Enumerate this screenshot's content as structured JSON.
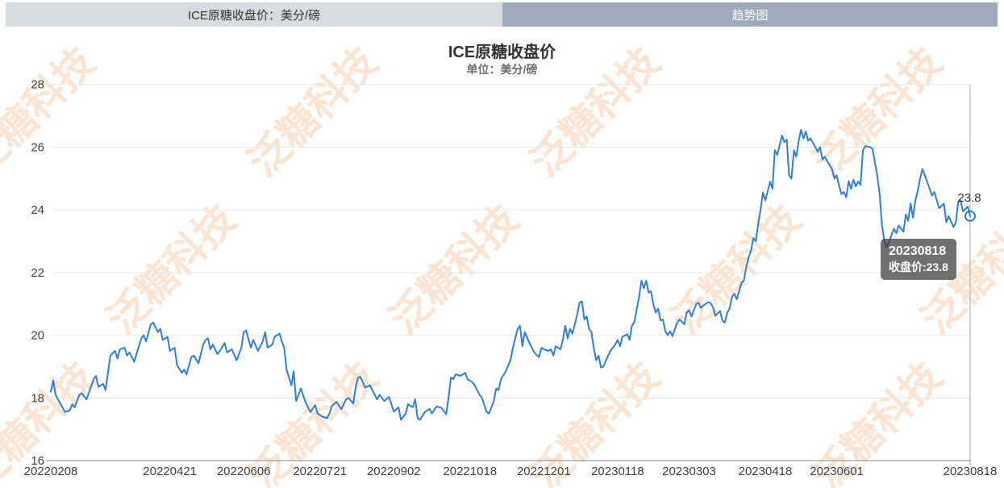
{
  "tabs": {
    "left": {
      "label": "ICE原糖收盘价：美分/磅"
    },
    "right": {
      "label": "趋势图"
    }
  },
  "header": {
    "title": "ICE原糖收盘价",
    "subtitle": "单位：美分/磅"
  },
  "watermark": {
    "text": "泛糖科技"
  },
  "tooltip": {
    "date": "20230818",
    "value_line": "收盘价:23.8"
  },
  "point_label": "23.8",
  "colors": {
    "line": "#2f7ed8",
    "grid": "#e8e8e8",
    "axis": "#888888",
    "tick_text": "#404040",
    "crosshair": "#a8a8a8",
    "tab_left_bg": "#d6dce3",
    "tab_left_text": "#333333",
    "tab_right_bg": "#9dabbb",
    "tab_right_text": "#ffffff",
    "watermark": "rgba(245,158,95,0.28)",
    "tooltip_bg": "rgba(64,64,64,0.75)"
  },
  "chart_data": {
    "type": "line",
    "title": "ICE原糖收盘价",
    "subtitle": "单位：美分/磅",
    "xlabel": "",
    "ylabel": "",
    "ylim": [
      16,
      28
    ],
    "yticks": [
      16,
      18,
      20,
      22,
      24,
      26,
      28
    ],
    "grid": "horizontal-only",
    "legend": "none",
    "x_axis_type": "trading-day-index",
    "total_days": 386,
    "xticks": [
      {
        "day": 0,
        "label": "20220208"
      },
      {
        "day": 50,
        "label": "20220421"
      },
      {
        "day": 81,
        "label": "20220606"
      },
      {
        "day": 113,
        "label": "20220721"
      },
      {
        "day": 144,
        "label": "20220902"
      },
      {
        "day": 176,
        "label": "20221018"
      },
      {
        "day": 207,
        "label": "20221201"
      },
      {
        "day": 238,
        "label": "20230118"
      },
      {
        "day": 268,
        "label": "20230303"
      },
      {
        "day": 300,
        "label": "20230418"
      },
      {
        "day": 330,
        "label": "20230601"
      },
      {
        "day": 386,
        "label": "20230818"
      }
    ],
    "last_point": {
      "date": "20230818",
      "value": 23.8
    },
    "series": [
      {
        "name": "收盘价",
        "unit": "美分/磅",
        "color": "#2f7ed8",
        "points": [
          [
            0,
            18.2
          ],
          [
            1,
            18.55
          ],
          [
            2,
            18.1
          ],
          [
            3,
            17.95
          ],
          [
            6,
            17.55
          ],
          [
            8,
            17.6
          ],
          [
            9,
            17.8
          ],
          [
            10,
            17.7
          ],
          [
            12,
            18.1
          ],
          [
            13,
            18.15
          ],
          [
            15,
            17.95
          ],
          [
            18,
            18.6
          ],
          [
            19,
            18.7
          ],
          [
            20,
            18.35
          ],
          [
            22,
            18.45
          ],
          [
            23,
            18.25
          ],
          [
            25,
            19.35
          ],
          [
            27,
            19.5
          ],
          [
            28,
            19.25
          ],
          [
            29,
            19.55
          ],
          [
            31,
            19.6
          ],
          [
            32,
            19.35
          ],
          [
            33,
            19.45
          ],
          [
            35,
            19.15
          ],
          [
            38,
            19.9
          ],
          [
            39,
            20.0
          ],
          [
            40,
            19.8
          ],
          [
            42,
            20.35
          ],
          [
            43,
            20.4
          ],
          [
            45,
            20.1
          ],
          [
            46,
            20.2
          ],
          [
            47,
            19.85
          ],
          [
            49,
            19.95
          ],
          [
            50,
            19.5
          ],
          [
            52,
            19.6
          ],
          [
            53,
            19.05
          ],
          [
            55,
            18.8
          ],
          [
            56,
            18.9
          ],
          [
            57,
            18.75
          ],
          [
            59,
            19.3
          ],
          [
            60,
            19.35
          ],
          [
            62,
            19.1
          ],
          [
            64,
            19.7
          ],
          [
            65,
            19.85
          ],
          [
            66,
            19.9
          ],
          [
            67,
            19.55
          ],
          [
            68,
            19.7
          ],
          [
            70,
            19.4
          ],
          [
            71,
            19.5
          ],
          [
            73,
            19.75
          ],
          [
            74,
            19.45
          ],
          [
            76,
            19.55
          ],
          [
            78,
            19.2
          ],
          [
            80,
            19.6
          ],
          [
            81,
            20.1
          ],
          [
            82,
            20.15
          ],
          [
            84,
            19.6
          ],
          [
            85,
            19.85
          ],
          [
            87,
            19.5
          ],
          [
            89,
            19.8
          ],
          [
            90,
            20.1
          ],
          [
            91,
            19.6
          ],
          [
            93,
            19.7
          ],
          [
            94,
            19.95
          ],
          [
            96,
            20.05
          ],
          [
            97,
            19.8
          ],
          [
            98,
            19.6
          ],
          [
            99,
            18.9
          ],
          [
            101,
            18.4
          ],
          [
            102,
            18.85
          ],
          [
            103,
            17.9
          ],
          [
            105,
            18.3
          ],
          [
            107,
            17.85
          ],
          [
            109,
            17.55
          ],
          [
            111,
            17.77
          ],
          [
            112,
            17.5
          ],
          [
            114,
            17.4
          ],
          [
            116,
            17.35
          ],
          [
            117,
            17.5
          ],
          [
            118,
            17.74
          ],
          [
            120,
            17.87
          ],
          [
            122,
            17.64
          ],
          [
            124,
            17.95
          ],
          [
            125,
            18.0
          ],
          [
            127,
            17.82
          ],
          [
            128,
            18.33
          ],
          [
            129,
            18.64
          ],
          [
            130,
            18.67
          ],
          [
            132,
            18.33
          ],
          [
            134,
            18.4
          ],
          [
            135,
            18.25
          ],
          [
            137,
            17.95
          ],
          [
            138,
            18.1
          ],
          [
            140,
            17.9
          ],
          [
            142,
            18.03
          ],
          [
            144,
            17.56
          ],
          [
            146,
            17.7
          ],
          [
            147,
            17.3
          ],
          [
            149,
            17.5
          ],
          [
            150,
            17.8
          ],
          [
            152,
            17.7
          ],
          [
            153,
            17.95
          ],
          [
            154,
            17.35
          ],
          [
            155,
            17.3
          ],
          [
            157,
            17.55
          ],
          [
            159,
            17.65
          ],
          [
            160,
            17.5
          ],
          [
            162,
            17.73
          ],
          [
            164,
            17.68
          ],
          [
            166,
            17.48
          ],
          [
            167,
            18.0
          ],
          [
            168,
            18.65
          ],
          [
            169,
            18.6
          ],
          [
            170,
            18.75
          ],
          [
            172,
            18.7
          ],
          [
            174,
            18.8
          ],
          [
            175,
            18.6
          ],
          [
            177,
            18.5
          ],
          [
            178,
            18.4
          ],
          [
            180,
            18.1
          ],
          [
            181,
            18.0
          ],
          [
            183,
            17.55
          ],
          [
            184,
            17.5
          ],
          [
            186,
            17.9
          ],
          [
            187,
            18.3
          ],
          [
            188,
            18.25
          ],
          [
            189,
            18.6
          ],
          [
            191,
            18.85
          ],
          [
            193,
            19.2
          ],
          [
            194,
            19.6
          ],
          [
            196,
            20.2
          ],
          [
            197,
            20.3
          ],
          [
            198,
            19.65
          ],
          [
            199,
            20.1
          ],
          [
            201,
            19.75
          ],
          [
            203,
            19.45
          ],
          [
            205,
            19.3
          ],
          [
            206,
            19.6
          ],
          [
            207,
            19.55
          ],
          [
            209,
            19.5
          ],
          [
            210,
            19.55
          ],
          [
            211,
            19.35
          ],
          [
            212,
            19.65
          ],
          [
            214,
            19.55
          ],
          [
            215,
            19.85
          ],
          [
            216,
            20.3
          ],
          [
            217,
            19.9
          ],
          [
            218,
            20.2
          ],
          [
            219,
            20.05
          ],
          [
            221,
            20.65
          ],
          [
            222,
            21.03
          ],
          [
            223,
            21.08
          ],
          [
            224,
            20.5
          ],
          [
            225,
            20.6
          ],
          [
            226,
            20.2
          ],
          [
            227,
            20.1
          ],
          [
            228,
            19.57
          ],
          [
            229,
            19.2
          ],
          [
            230,
            19.35
          ],
          [
            231,
            18.97
          ],
          [
            232,
            19.0
          ],
          [
            234,
            19.35
          ],
          [
            235,
            19.5
          ],
          [
            237,
            19.7
          ],
          [
            238,
            19.85
          ],
          [
            239,
            19.65
          ],
          [
            240,
            19.95
          ],
          [
            242,
            20.03
          ],
          [
            243,
            19.85
          ],
          [
            244,
            20.3
          ],
          [
            245,
            20.42
          ],
          [
            247,
            21.23
          ],
          [
            248,
            21.74
          ],
          [
            249,
            21.5
          ],
          [
            250,
            21.74
          ],
          [
            251,
            21.36
          ],
          [
            252,
            21.4
          ],
          [
            253,
            20.98
          ],
          [
            254,
            20.72
          ],
          [
            255,
            20.85
          ],
          [
            256,
            20.47
          ],
          [
            257,
            20.5
          ],
          [
            258,
            20.13
          ],
          [
            259,
            20.0
          ],
          [
            260,
            20.13
          ],
          [
            261,
            19.97
          ],
          [
            263,
            20.4
          ],
          [
            264,
            20.5
          ],
          [
            266,
            20.35
          ],
          [
            267,
            20.72
          ],
          [
            268,
            20.8
          ],
          [
            269,
            20.6
          ],
          [
            271,
            21.0
          ],
          [
            272,
            21.03
          ],
          [
            273,
            20.87
          ],
          [
            274,
            20.95
          ],
          [
            276,
            21.05
          ],
          [
            277,
            21.03
          ],
          [
            278,
            20.9
          ],
          [
            279,
            20.62
          ],
          [
            281,
            20.77
          ],
          [
            282,
            20.47
          ],
          [
            283,
            20.4
          ],
          [
            284,
            20.72
          ],
          [
            285,
            20.85
          ],
          [
            286,
            21.23
          ],
          [
            287,
            21.32
          ],
          [
            288,
            21.15
          ],
          [
            290,
            21.67
          ],
          [
            291,
            21.74
          ],
          [
            292,
            22.18
          ],
          [
            293,
            22.48
          ],
          [
            294,
            22.7
          ],
          [
            295,
            23.1
          ],
          [
            296,
            23.0
          ],
          [
            297,
            23.55
          ],
          [
            298,
            24.0
          ],
          [
            299,
            24.55
          ],
          [
            300,
            24.3
          ],
          [
            302,
            24.9
          ],
          [
            303,
            24.67
          ],
          [
            304,
            25.9
          ],
          [
            305,
            25.75
          ],
          [
            307,
            26.37
          ],
          [
            308,
            26.16
          ],
          [
            309,
            26.24
          ],
          [
            310,
            25.1
          ],
          [
            311,
            25.0
          ],
          [
            312,
            25.9
          ],
          [
            313,
            25.7
          ],
          [
            314,
            26.2
          ],
          [
            315,
            26.55
          ],
          [
            316,
            26.28
          ],
          [
            317,
            26.5
          ],
          [
            318,
            26.2
          ],
          [
            319,
            26.28
          ],
          [
            321,
            26.0
          ],
          [
            322,
            25.85
          ],
          [
            323,
            26.0
          ],
          [
            324,
            25.6
          ],
          [
            325,
            25.7
          ],
          [
            326,
            25.55
          ],
          [
            328,
            25.3
          ],
          [
            329,
            25.0
          ],
          [
            330,
            25.1
          ],
          [
            331,
            24.75
          ],
          [
            332,
            24.5
          ],
          [
            333,
            24.57
          ],
          [
            334,
            24.4
          ],
          [
            335,
            24.92
          ],
          [
            336,
            24.67
          ],
          [
            337,
            24.96
          ],
          [
            338,
            24.75
          ],
          [
            339,
            24.9
          ],
          [
            340,
            24.8
          ],
          [
            341,
            25.9
          ],
          [
            342,
            26.03
          ],
          [
            344,
            26.0
          ],
          [
            345,
            25.95
          ],
          [
            347,
            25.1
          ],
          [
            348,
            24.5
          ],
          [
            349,
            23.5
          ],
          [
            350,
            23.0
          ],
          [
            351,
            22.8
          ],
          [
            352,
            23.0
          ],
          [
            354,
            23.4
          ],
          [
            355,
            23.25
          ],
          [
            356,
            23.5
          ],
          [
            358,
            23.3
          ],
          [
            359,
            23.85
          ],
          [
            360,
            23.65
          ],
          [
            361,
            24.2
          ],
          [
            362,
            23.75
          ],
          [
            363,
            24.3
          ],
          [
            364,
            24.6
          ],
          [
            365,
            25.0
          ],
          [
            366,
            25.3
          ],
          [
            367,
            25.1
          ],
          [
            369,
            24.67
          ],
          [
            370,
            24.45
          ],
          [
            371,
            24.57
          ],
          [
            372,
            24.3
          ],
          [
            373,
            24.05
          ],
          [
            375,
            24.2
          ],
          [
            376,
            23.6
          ],
          [
            377,
            23.8
          ],
          [
            379,
            23.45
          ],
          [
            380,
            23.6
          ],
          [
            381,
            24.25
          ],
          [
            382,
            24.3
          ],
          [
            383,
            23.95
          ],
          [
            385,
            24.1
          ],
          [
            386,
            23.8
          ]
        ]
      }
    ]
  }
}
